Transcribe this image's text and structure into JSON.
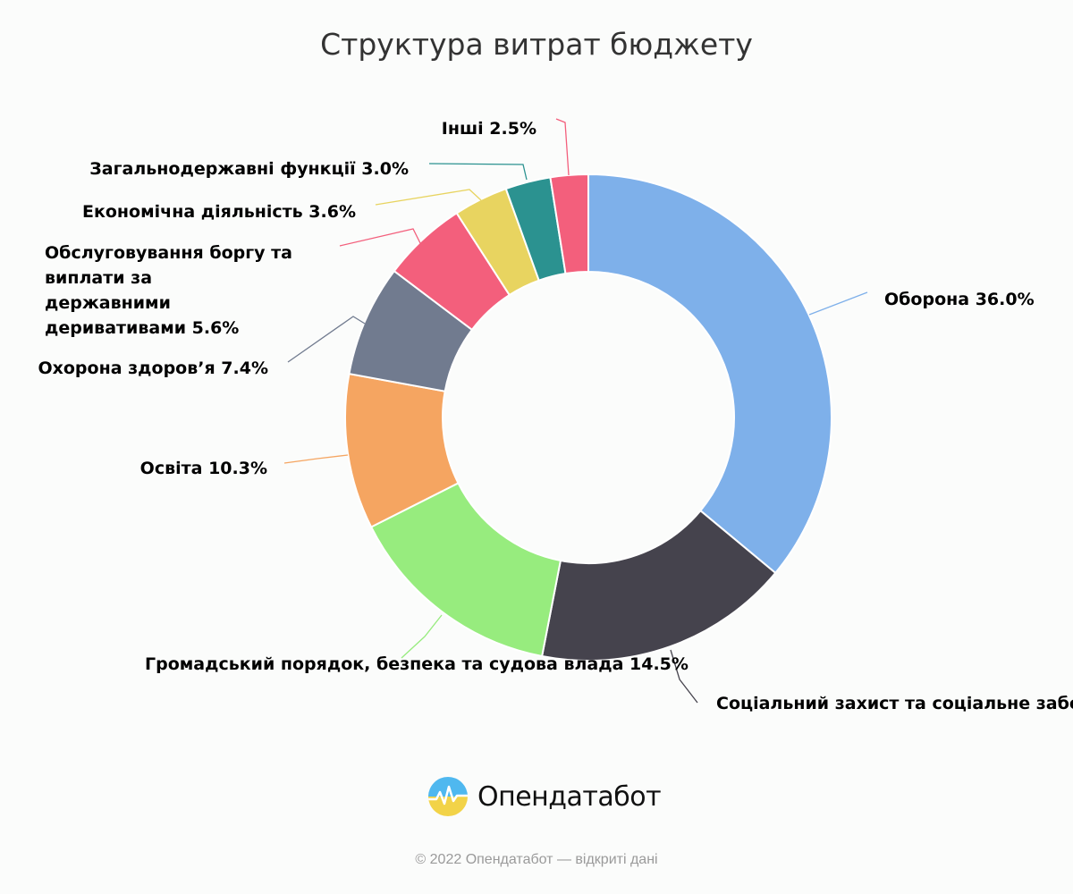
{
  "chart_data": {
    "type": "pie",
    "title": "Структура витрат бюджету",
    "slices": [
      {
        "label": "Оборона",
        "value": 36.0,
        "color": "#7eb0ea"
      },
      {
        "label": "Соціальний захист та соціальне забезпечення",
        "value": 17.0,
        "color": "#45434d"
      },
      {
        "label": "Громадський порядок, безпека та судова влада",
        "value": 14.5,
        "color": "#97ec7e"
      },
      {
        "label": "Освіта",
        "value": 10.3,
        "color": "#f5a561"
      },
      {
        "label": "Охорона здоров’я",
        "value": 7.4,
        "color": "#717b8f"
      },
      {
        "label": "Обслуговування боргу та виплати за державними деривативами",
        "value": 5.6,
        "color": "#f35f7c"
      },
      {
        "label": "Економічна діяльність",
        "value": 3.6,
        "color": "#e8d460"
      },
      {
        "label": "Загальнодержавні функції",
        "value": 3.0,
        "color": "#2b9290"
      },
      {
        "label": "Інші",
        "value": 2.5,
        "color": "#f35f7c"
      }
    ],
    "value_suffix": "%"
  },
  "brand": {
    "name": "Опендатабот"
  },
  "footer": {
    "text": "© 2022 Опендатабот — відкриті дані"
  }
}
